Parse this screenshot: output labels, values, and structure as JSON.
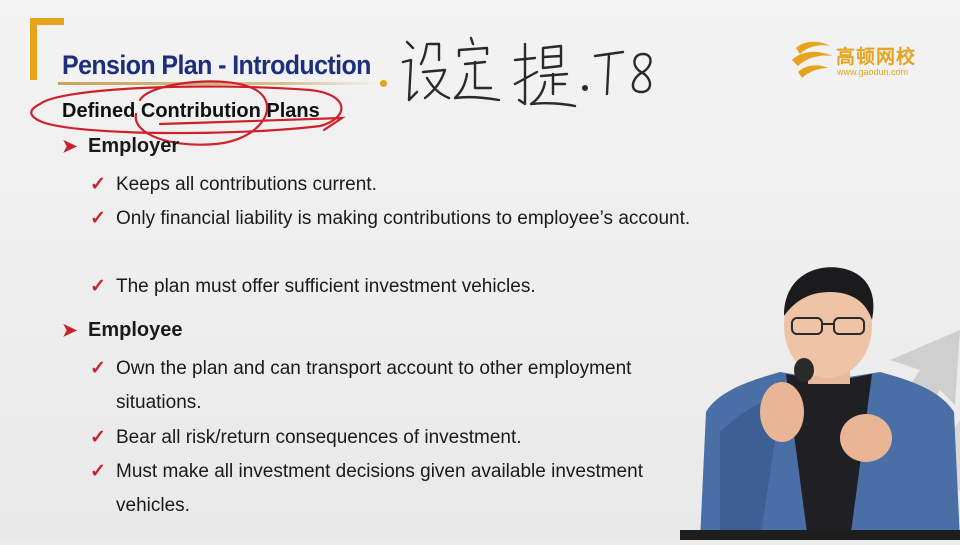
{
  "header": {
    "title": "Pension Plan - Introduction"
  },
  "logo": {
    "name": "高顿网校",
    "url": "www.gaodun.com"
  },
  "annotation": {
    "handwritten_note": "设定提T8"
  },
  "content": {
    "section_title": "Defined Contribution Plans",
    "groups": [
      {
        "heading": "Employer",
        "items": [
          "Keeps all contributions current.",
          "Only financial liability is making contributions to employee’s account.",
          "The plan must offer sufficient investment vehicles."
        ]
      },
      {
        "heading": "Employee",
        "items": [
          "Own the plan and can transport account to other employment situations.",
          "Bear all risk/return consequences of investment.",
          "Must make all investment decisions given available investment vehicles."
        ]
      }
    ]
  },
  "colors": {
    "title_blue": "#1d2f7a",
    "accent_orange": "#e7a31c",
    "bullet_red": "#c8232c",
    "ink_red": "#d0202a",
    "ink_dark": "#2a2a2a"
  }
}
